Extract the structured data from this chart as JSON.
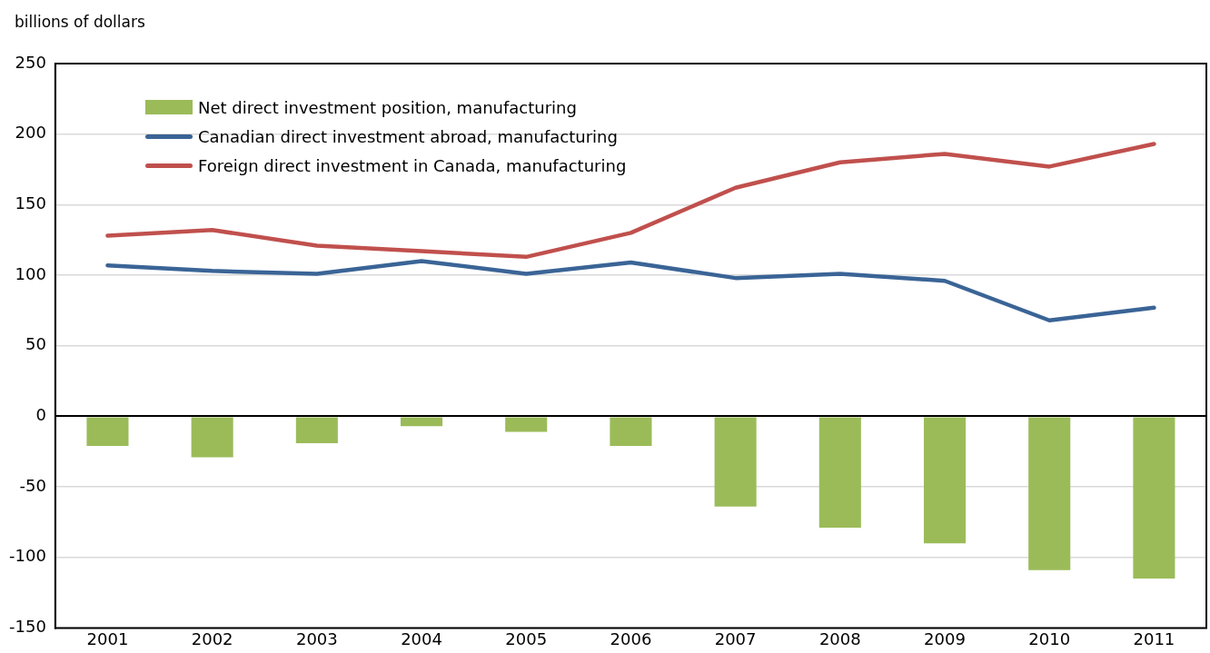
{
  "chart_data": {
    "type": "bar",
    "ylabel": "billions of dollars",
    "categories": [
      "2001",
      "2002",
      "2003",
      "2004",
      "2005",
      "2006",
      "2007",
      "2008",
      "2009",
      "2010",
      "2011"
    ],
    "series": [
      {
        "name": "Net direct investment position, manufacturing",
        "color": "#9bbb59",
        "values": [
          -21,
          -29,
          -19,
          -7,
          -11,
          -21,
          -64,
          -79,
          -90,
          -109,
          -115
        ]
      },
      {
        "name": "Canadian direct investment abroad, manufacturing",
        "type": "line",
        "color": "#3a6496",
        "values": [
          107,
          103,
          101,
          110,
          101,
          109,
          98,
          101,
          96,
          68,
          77
        ]
      },
      {
        "name": "Foreign direct investment in Canada, manufacturing",
        "type": "line",
        "color": "#c0504d",
        "values": [
          128,
          132,
          121,
          117,
          113,
          130,
          162,
          180,
          186,
          177,
          193
        ]
      }
    ],
    "ylim": [
      -150,
      250
    ],
    "yticks": [
      -150,
      -100,
      -50,
      0,
      50,
      100,
      150,
      200,
      250
    ],
    "grid": "y",
    "legend": "top left",
    "marker": "none"
  }
}
